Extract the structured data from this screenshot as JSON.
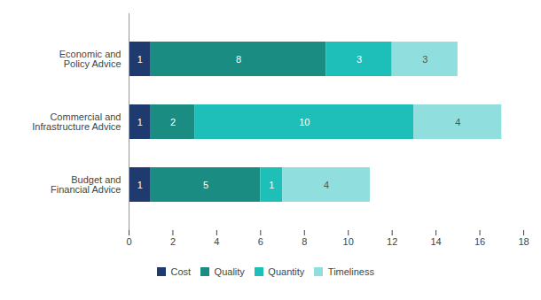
{
  "chart_data": {
    "type": "bar",
    "orientation": "horizontal",
    "stacked": true,
    "data_labels": true,
    "grid": false,
    "legend": "bottom",
    "categories": [
      "Economic and\nPolicy Advice",
      "Commercial and\nInfrastructure Advice",
      "Budget and\nFinancial Advice"
    ],
    "series": [
      {
        "name": "Cost",
        "color": "#1e3a6e",
        "values": [
          1,
          1,
          1
        ]
      },
      {
        "name": "Quality",
        "color": "#1a8c82",
        "values": [
          8,
          2,
          5
        ]
      },
      {
        "name": "Quantity",
        "color": "#1dbfb8",
        "values": [
          3,
          10,
          1
        ]
      },
      {
        "name": "Timeliness",
        "color": "#90dede",
        "values": [
          3,
          4,
          4
        ]
      }
    ],
    "xlim": [
      0,
      18
    ],
    "xticks": [
      0,
      2,
      4,
      6,
      8,
      10,
      12,
      14,
      16,
      18
    ]
  }
}
